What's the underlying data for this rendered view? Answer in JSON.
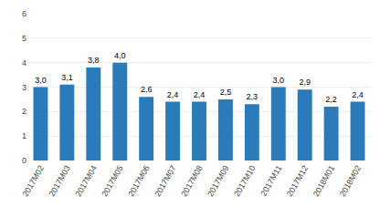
{
  "chart_data": {
    "type": "bar",
    "categories": [
      "2017M02",
      "2017M03",
      "2017M04",
      "2017M05",
      "2017M06",
      "2017M07",
      "2017M08",
      "2017M09",
      "2017M10",
      "2017M11",
      "2017M12",
      "2018M01",
      "2018M02"
    ],
    "values": [
      3.0,
      3.1,
      3.8,
      4.0,
      2.6,
      2.4,
      2.4,
      2.5,
      2.3,
      3.0,
      2.9,
      2.2,
      2.4
    ],
    "value_labels": [
      "3,0",
      "3,1",
      "3,8",
      "4,0",
      "2,6",
      "2,4",
      "2,4",
      "2,5",
      "2,3",
      "3,0",
      "2,9",
      "2,2",
      "2,4"
    ],
    "data_labels": true,
    "color": "#2b7bba",
    "ylim": [
      0,
      6
    ],
    "yticks": [
      0,
      1,
      2,
      3,
      4,
      5,
      6
    ],
    "grid": true
  }
}
